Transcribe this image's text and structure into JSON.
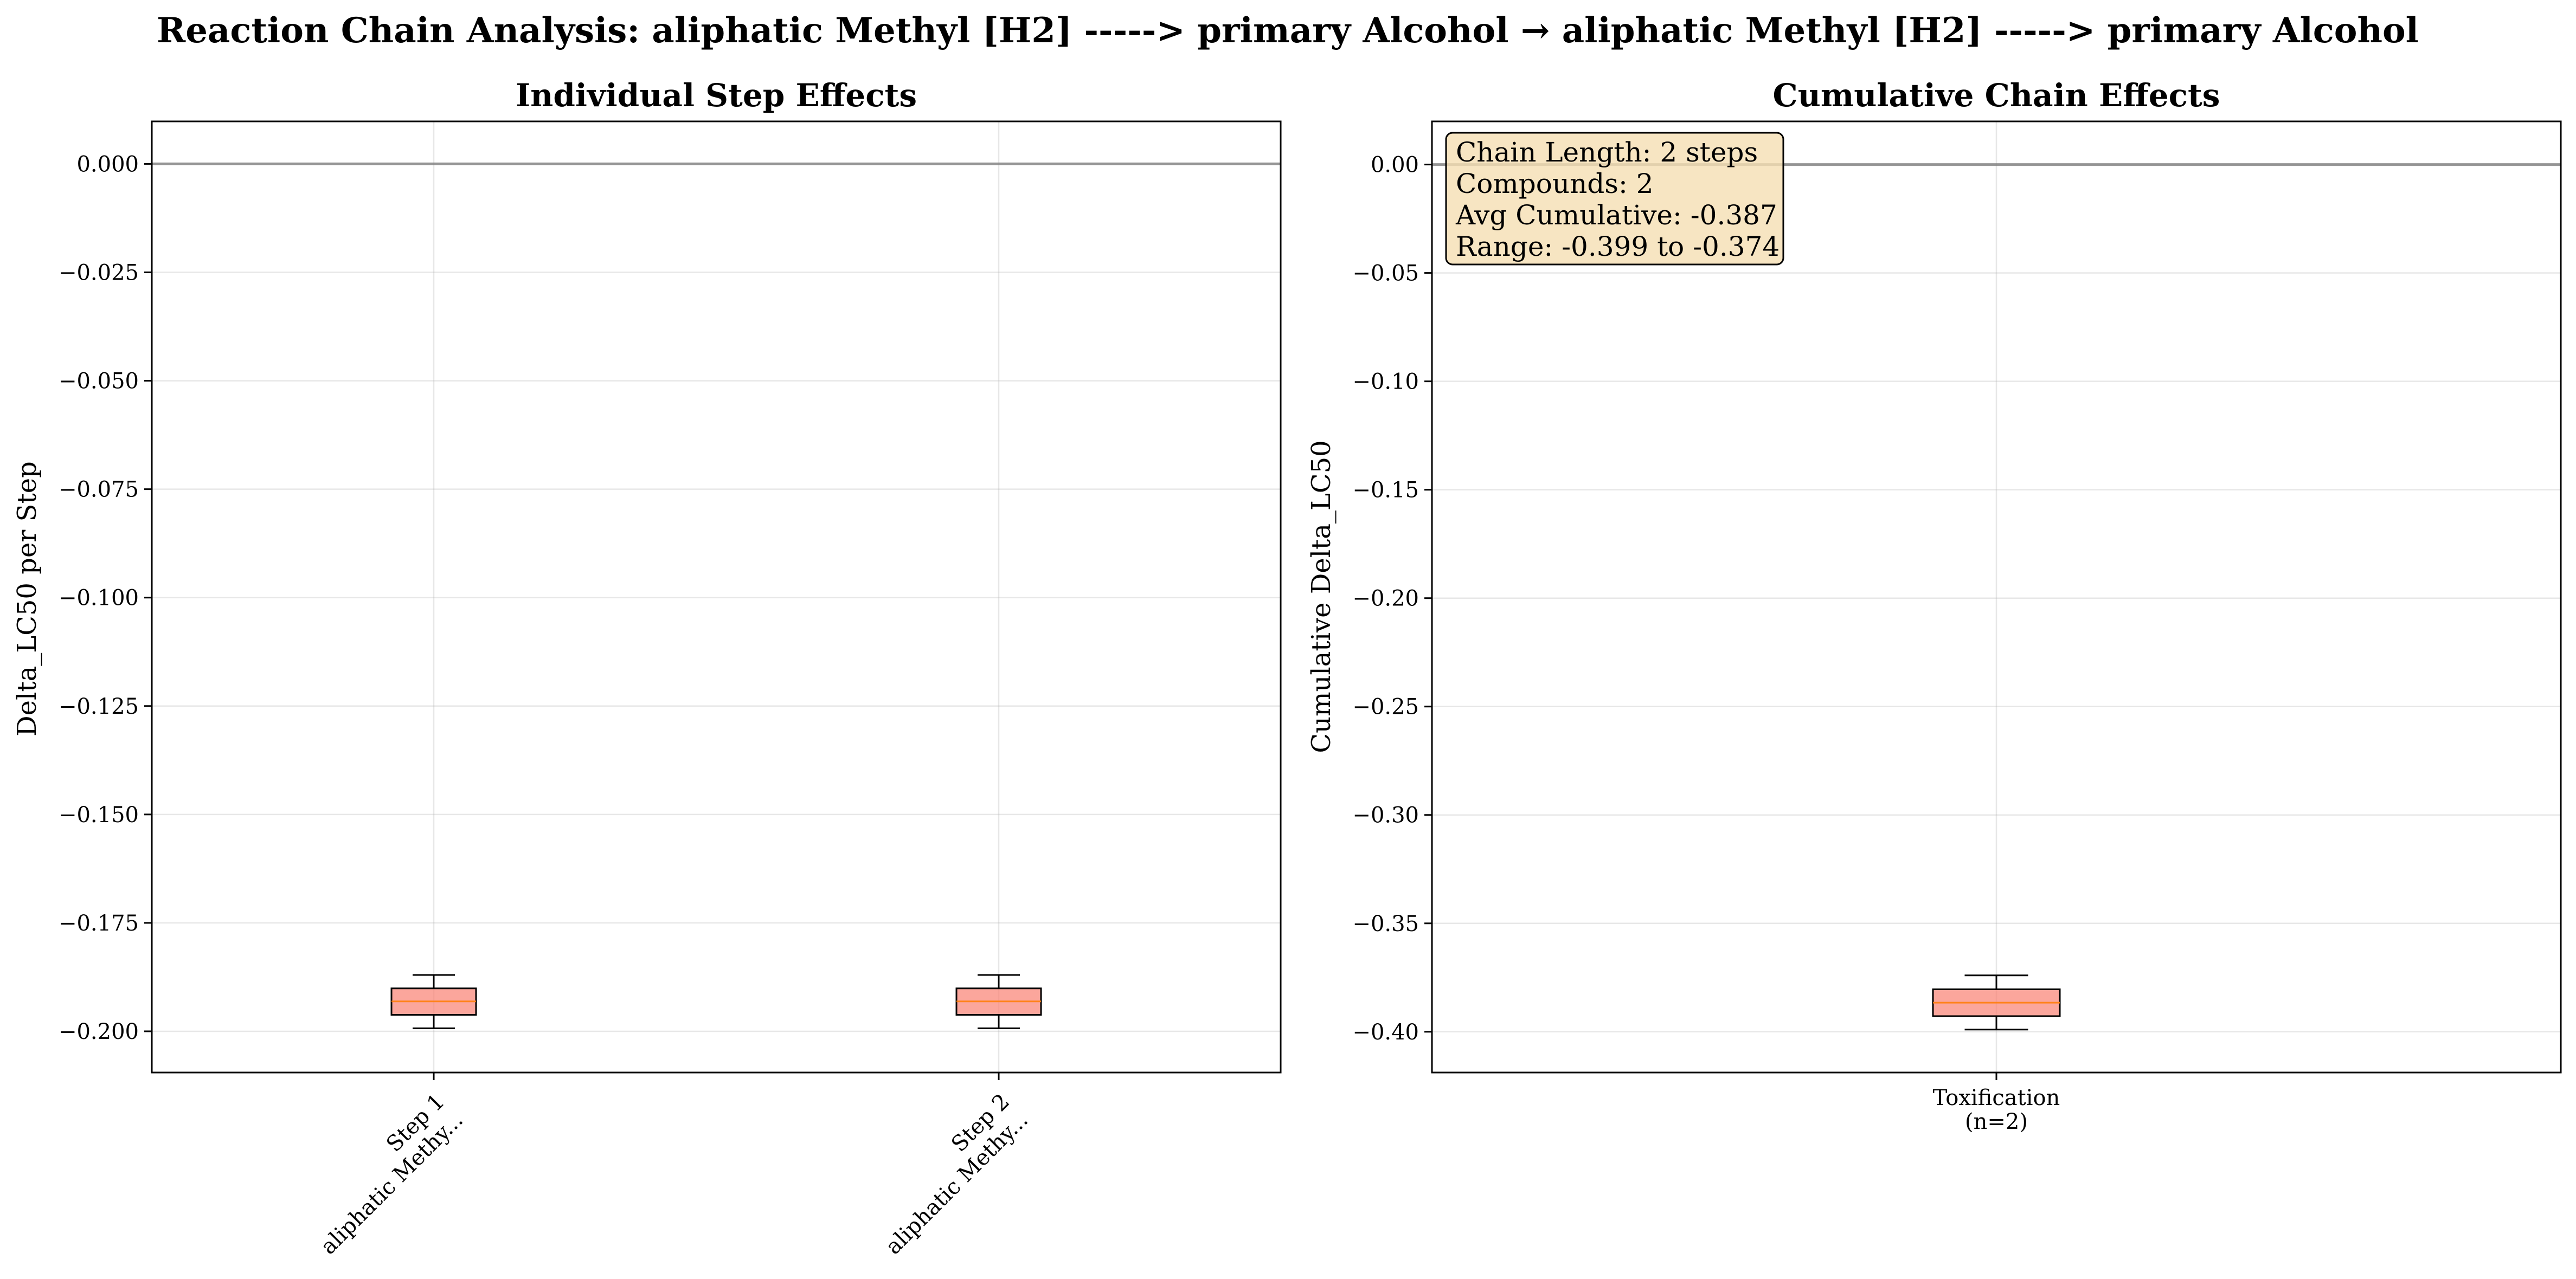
{
  "chart_data": [
    {
      "type": "box",
      "suptitle": "Reaction Chain Analysis: aliphatic Methyl [H2] -----> primary Alcohol → aliphatic Methyl [H2] -----> primary Alcohol",
      "title": "Individual Step Effects",
      "xlabel": "",
      "ylabel": "Delta_LC50 per Step",
      "ylim": [
        -0.2095,
        0.0098
      ],
      "yticks": [
        0.0,
        -0.025,
        -0.05,
        -0.075,
        -0.1,
        -0.125,
        -0.15,
        -0.175,
        -0.2
      ],
      "ytick_labels": [
        "0.000",
        "−0.025",
        "−0.050",
        "−0.075",
        "−0.100",
        "−0.125",
        "−0.150",
        "−0.175",
        "−0.200"
      ],
      "zero_line": 0.0,
      "grid": true,
      "categories": [
        {
          "line1": "Step 1",
          "line2": "aliphatic Methy..."
        },
        {
          "line1": "Step 2",
          "line2": "aliphatic Methy..."
        }
      ],
      "boxes": [
        {
          "whislo": -0.1993,
          "q1": -0.1962,
          "med": -0.1931,
          "q3": -0.1901,
          "whishi": -0.187
        },
        {
          "whislo": -0.1993,
          "q1": -0.1962,
          "med": -0.1931,
          "q3": -0.1901,
          "whishi": -0.187
        }
      ],
      "box_color": "#fa8072",
      "median_color": "#ff7f0e"
    },
    {
      "type": "box",
      "title": "Cumulative Chain Effects",
      "xlabel": "",
      "ylabel": "Cumulative Delta_LC50",
      "ylim": [
        -0.4188,
        0.0199
      ],
      "yticks": [
        0.0,
        -0.05,
        -0.1,
        -0.15,
        -0.2,
        -0.25,
        -0.3,
        -0.35,
        -0.4
      ],
      "ytick_labels": [
        "0.00",
        "−0.05",
        "−0.10",
        "−0.15",
        "−0.20",
        "−0.25",
        "−0.30",
        "−0.35",
        "−0.40"
      ],
      "zero_line": 0.0,
      "grid": true,
      "categories": [
        {
          "line1": "Toxification",
          "line2": "(n=2)"
        }
      ],
      "boxes": [
        {
          "whislo": -0.399,
          "q1": -0.3928,
          "med": -0.3866,
          "q3": -0.3804,
          "whishi": -0.374
        }
      ],
      "box_color": "#fa8072",
      "median_color": "#ff7f0e",
      "annotation": [
        "Chain Length: 2 steps",
        "Compounds: 2",
        "Avg Cumulative: -0.387",
        "Range: -0.399 to -0.374"
      ],
      "annotation_color": "#f5deb3"
    }
  ]
}
